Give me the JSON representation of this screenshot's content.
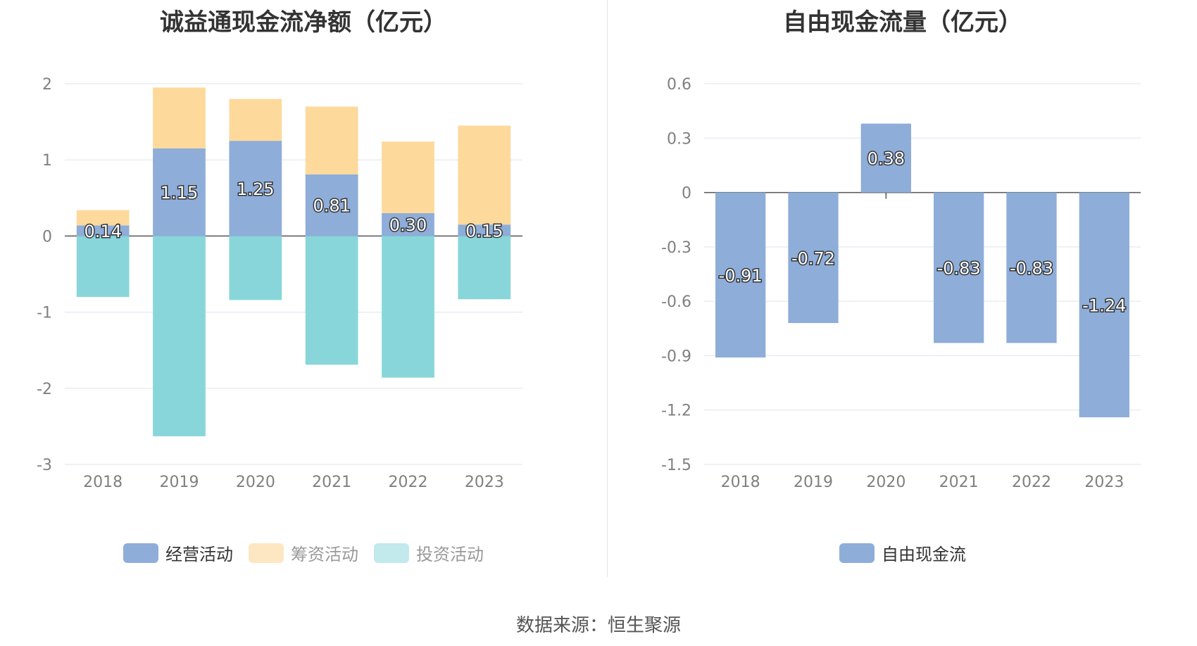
{
  "chart_data": [
    {
      "type": "bar",
      "stacked": true,
      "title": "诚益通现金流净额（亿元）",
      "categories": [
        "2018",
        "2019",
        "2020",
        "2021",
        "2022",
        "2023"
      ],
      "series": [
        {
          "name": "经营活动",
          "values": [
            0.14,
            1.15,
            1.25,
            0.81,
            0.3,
            0.15
          ],
          "color": "#8eadd9",
          "labels": [
            "0.14",
            "1.15",
            "1.25",
            "0.81",
            "0.30",
            "0.15"
          ]
        },
        {
          "name": "筹资活动",
          "values": [
            0.2,
            0.8,
            0.55,
            0.89,
            0.94,
            1.3
          ],
          "color": "#fdd99b"
        },
        {
          "name": "投资活动",
          "values": [
            -0.8,
            -2.63,
            -0.84,
            -1.69,
            -1.86,
            -0.83
          ],
          "color": "#88d6da"
        }
      ],
      "yticks": [
        "2",
        "1",
        "0",
        "-1",
        "-2",
        "-3"
      ],
      "ylim": [
        -3,
        2
      ],
      "legend": [
        {
          "name": "经营活动",
          "color": "#8eadd9",
          "text_color": "#333333"
        },
        {
          "name": "筹资活动",
          "color": "#fde6c2",
          "text_color": "#999999"
        },
        {
          "name": "投资活动",
          "color": "#c2e9ec",
          "text_color": "#999999"
        }
      ]
    },
    {
      "type": "bar",
      "title": "自由现金流量（亿元）",
      "categories": [
        "2018",
        "2019",
        "2020",
        "2021",
        "2022",
        "2023"
      ],
      "series": [
        {
          "name": "自由现金流",
          "values": [
            -0.91,
            -0.72,
            0.38,
            -0.83,
            -0.83,
            -1.24
          ],
          "color": "#8eadd9",
          "labels": [
            "-0.91",
            "-0.72",
            "0.38",
            "-0.83",
            "-0.83",
            "-1.24"
          ]
        }
      ],
      "yticks": [
        "0.6",
        "0.3",
        "0",
        "-0.3",
        "-0.6",
        "-0.9",
        "-1.2",
        "-1.5"
      ],
      "ylim": [
        -1.5,
        0.6
      ],
      "legend": [
        {
          "name": "自由现金流",
          "color": "#8eadd9",
          "text_color": "#333333"
        }
      ]
    }
  ],
  "source": "数据来源：恒生聚源"
}
